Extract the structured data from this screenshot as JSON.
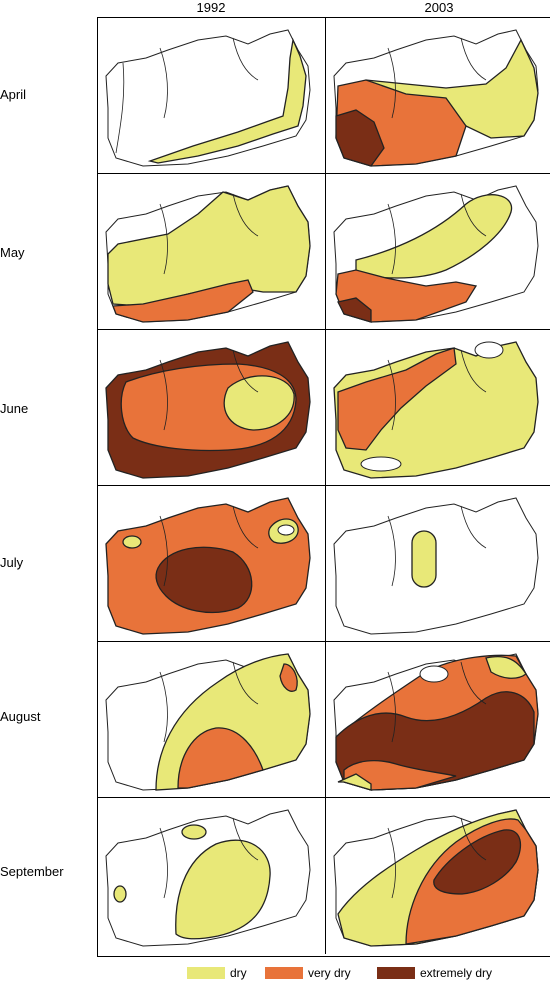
{
  "columns": [
    "1992",
    "2003"
  ],
  "rows": [
    "April",
    "May",
    "June",
    "July",
    "August",
    "September"
  ],
  "colors": {
    "dry": "#e8e878",
    "very_dry": "#e8733a",
    "extremely_dry": "#7a2e16",
    "outline": "#222222"
  },
  "legend": [
    {
      "label": "dry",
      "color": "#e8e878"
    },
    {
      "label": "very dry",
      "color": "#e8733a"
    },
    {
      "label": "extremely dry",
      "color": "#7a2e16"
    }
  ]
}
